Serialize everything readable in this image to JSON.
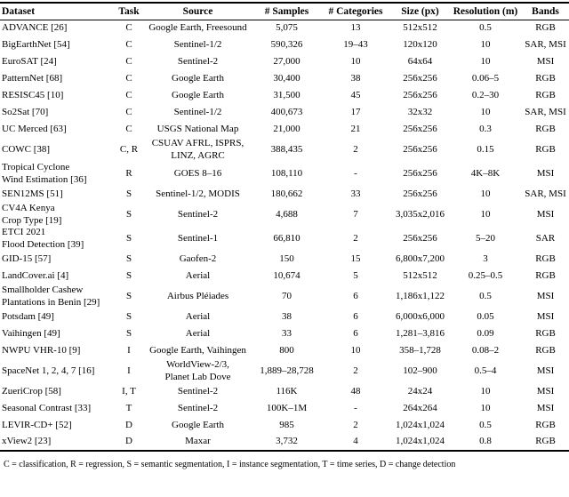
{
  "table": {
    "columns": [
      "Dataset",
      "Task",
      "Source",
      "# Samples",
      "# Categories",
      "Size (px)",
      "Resolution (m)",
      "Bands"
    ],
    "rows": [
      {
        "dataset": "ADVANCE [26]",
        "task": "C",
        "source": "Google Earth, Freesound",
        "samples": "5,075",
        "categories": "13",
        "size": "512x512",
        "resolution": "0.5",
        "bands": "RGB"
      },
      {
        "dataset": "BigEarthNet [54]",
        "task": "C",
        "source": "Sentinel-1/2",
        "samples": "590,326",
        "categories": "19–43",
        "size": "120x120",
        "resolution": "10",
        "bands": "SAR, MSI"
      },
      {
        "dataset": "EuroSAT [24]",
        "task": "C",
        "source": "Sentinel-2",
        "samples": "27,000",
        "categories": "10",
        "size": "64x64",
        "resolution": "10",
        "bands": "MSI"
      },
      {
        "dataset": "PatternNet [68]",
        "task": "C",
        "source": "Google Earth",
        "samples": "30,400",
        "categories": "38",
        "size": "256x256",
        "resolution": "0.06–5",
        "bands": "RGB"
      },
      {
        "dataset": "RESISC45 [10]",
        "task": "C",
        "source": "Google Earth",
        "samples": "31,500",
        "categories": "45",
        "size": "256x256",
        "resolution": "0.2–30",
        "bands": "RGB"
      },
      {
        "dataset": "So2Sat [70]",
        "task": "C",
        "source": "Sentinel-1/2",
        "samples": "400,673",
        "categories": "17",
        "size": "32x32",
        "resolution": "10",
        "bands": "SAR, MSI"
      },
      {
        "dataset": "UC Merced [63]",
        "task": "C",
        "source": "USGS National Map",
        "samples": "21,000",
        "categories": "21",
        "size": "256x256",
        "resolution": "0.3",
        "bands": "RGB"
      },
      {
        "dataset": "COWC [38]",
        "task": "C, R",
        "source": "CSUAV AFRL, ISPRS,\nLINZ, AGRC",
        "samples": "388,435",
        "categories": "2",
        "size": "256x256",
        "resolution": "0.15",
        "bands": "RGB"
      },
      {
        "dataset": "Tropical Cyclone\nWind Estimation [36]",
        "task": "R",
        "source": "GOES 8–16",
        "samples": "108,110",
        "categories": "-",
        "size": "256x256",
        "resolution": "4K–8K",
        "bands": "MSI"
      },
      {
        "dataset": "SEN12MS [51]",
        "task": "S",
        "source": "Sentinel-1/2, MODIS",
        "samples": "180,662",
        "categories": "33",
        "size": "256x256",
        "resolution": "10",
        "bands": "SAR, MSI"
      },
      {
        "dataset": "CV4A Kenya\nCrop Type [19]",
        "task": "S",
        "source": "Sentinel-2",
        "samples": "4,688",
        "categories": "7",
        "size": "3,035x2,016",
        "resolution": "10",
        "bands": "MSI"
      },
      {
        "dataset": "ETCI 2021\nFlood Detection [39]",
        "task": "S",
        "source": "Sentinel-1",
        "samples": "66,810",
        "categories": "2",
        "size": "256x256",
        "resolution": "5–20",
        "bands": "SAR"
      },
      {
        "dataset": "GID-15 [57]",
        "task": "S",
        "source": "Gaofen-2",
        "samples": "150",
        "categories": "15",
        "size": "6,800x7,200",
        "resolution": "3",
        "bands": "RGB"
      },
      {
        "dataset": "LandCover.ai [4]",
        "task": "S",
        "source": "Aerial",
        "samples": "10,674",
        "categories": "5",
        "size": "512x512",
        "resolution": "0.25–0.5",
        "bands": "RGB"
      },
      {
        "dataset": "Smallholder Cashew\nPlantations in Benin [29]",
        "task": "S",
        "source": "Airbus Pléiades",
        "samples": "70",
        "categories": "6",
        "size": "1,186x1,122",
        "resolution": "0.5",
        "bands": "MSI"
      },
      {
        "dataset": "Potsdam [49]",
        "task": "S",
        "source": "Aerial",
        "samples": "38",
        "categories": "6",
        "size": "6,000x6,000",
        "resolution": "0.05",
        "bands": "MSI"
      },
      {
        "dataset": "Vaihingen [49]",
        "task": "S",
        "source": "Aerial",
        "samples": "33",
        "categories": "6",
        "size": "1,281–3,816",
        "resolution": "0.09",
        "bands": "RGB"
      },
      {
        "dataset": "NWPU VHR-10 [9]",
        "task": "I",
        "source": "Google Earth, Vaihingen",
        "samples": "800",
        "categories": "10",
        "size": "358–1,728",
        "resolution": "0.08–2",
        "bands": "RGB"
      },
      {
        "dataset": "SpaceNet 1, 2, 4, 7 [16]",
        "task": "I",
        "source": "WorldView-2/3,\nPlanet Lab Dove",
        "samples": "1,889–28,728",
        "categories": "2",
        "size": "102–900",
        "resolution": "0.5–4",
        "bands": "MSI"
      },
      {
        "dataset": "ZueriCrop [58]",
        "task": "I, T",
        "source": "Sentinel-2",
        "samples": "116K",
        "categories": "48",
        "size": "24x24",
        "resolution": "10",
        "bands": "MSI"
      },
      {
        "dataset": "Seasonal Contrast [33]",
        "task": "T",
        "source": "Sentinel-2",
        "samples": "100K–1M",
        "categories": "-",
        "size": "264x264",
        "resolution": "10",
        "bands": "MSI"
      },
      {
        "dataset": "LEVIR-CD+ [52]",
        "task": "D",
        "source": "Google Earth",
        "samples": "985",
        "categories": "2",
        "size": "1,024x1,024",
        "resolution": "0.5",
        "bands": "RGB"
      },
      {
        "dataset": "xView2 [23]",
        "task": "D",
        "source": "Maxar",
        "samples": "3,732",
        "categories": "4",
        "size": "1,024x1,024",
        "resolution": "0.8",
        "bands": "RGB"
      }
    ],
    "footnote": "C = classification, R = regression, S = semantic segmentation, I = instance segmentation, T = time series, D = change detection"
  }
}
